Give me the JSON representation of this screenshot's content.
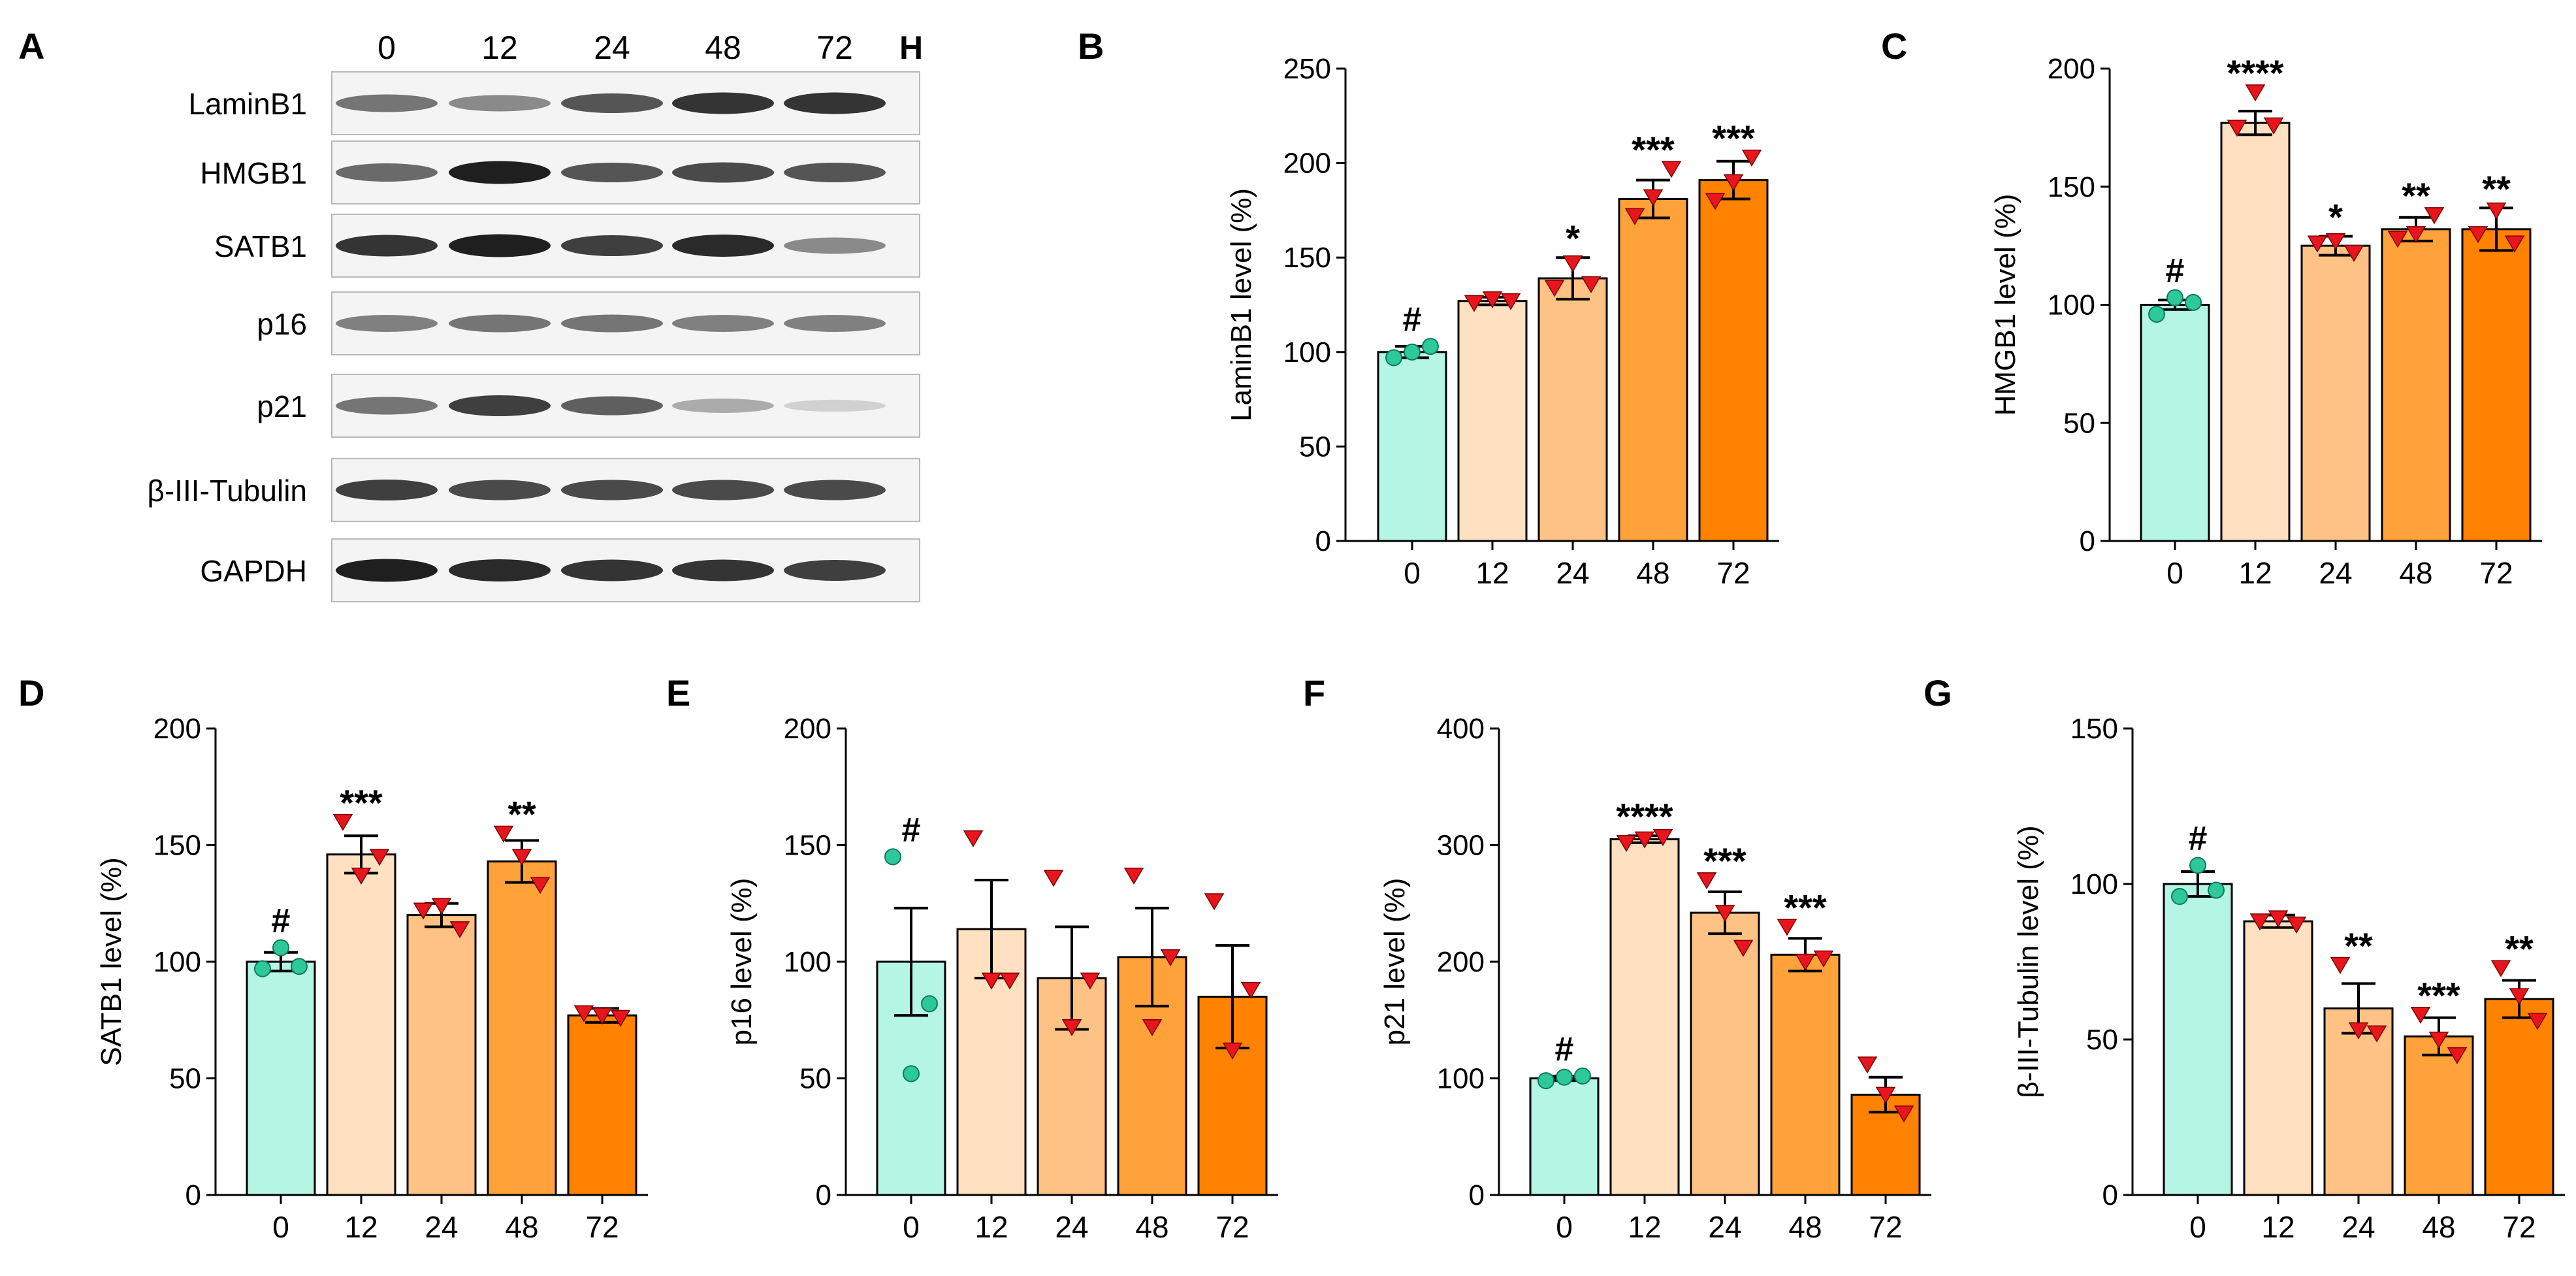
{
  "panel_a": {
    "letter": "A",
    "lane_labels": [
      "0",
      "12",
      "24",
      "48",
      "72"
    ],
    "unit": "H",
    "rows": [
      "LaminB1",
      "HMGB1",
      "SATB1",
      "p16",
      "p21",
      "β-III-Tubulin",
      "GAPDH"
    ],
    "band_intensity": [
      [
        0.55,
        0.45,
        0.7,
        0.85,
        0.85
      ],
      [
        0.6,
        0.95,
        0.7,
        0.75,
        0.7
      ],
      [
        0.85,
        0.95,
        0.8,
        0.9,
        0.45
      ],
      [
        0.5,
        0.55,
        0.55,
        0.5,
        0.5
      ],
      [
        0.55,
        0.8,
        0.65,
        0.3,
        0.12
      ],
      [
        0.8,
        0.75,
        0.75,
        0.75,
        0.75
      ],
      [
        0.95,
        0.9,
        0.85,
        0.85,
        0.8
      ]
    ]
  },
  "bar_colors": [
    "#b4f5e4",
    "#ffe0c0",
    "#ffc285",
    "#ffa23a",
    "#ff8200"
  ],
  "point_colors": {
    "control": "#2ec99a",
    "treated": "#e8161c"
  },
  "chart_data": [
    {
      "panel": "B",
      "type": "bar",
      "categories": [
        "0",
        "12",
        "24",
        "48",
        "72"
      ],
      "values": [
        100,
        127,
        139,
        181,
        191
      ],
      "errors": [
        3,
        2,
        11,
        10,
        10
      ],
      "points": [
        [
          97,
          100,
          103
        ],
        [
          126,
          128,
          127
        ],
        [
          134,
          147,
          136
        ],
        [
          172,
          182,
          197
        ],
        [
          180,
          190,
          203
        ]
      ],
      "significance": [
        "#",
        "",
        "*",
        "***",
        "***"
      ],
      "ylabel": "LaminB1 level (%)",
      "ylim": [
        0,
        250
      ],
      "yticks": [
        "0",
        "50",
        "100",
        "150",
        "200",
        "250"
      ]
    },
    {
      "panel": "C",
      "type": "bar",
      "categories": [
        "0",
        "12",
        "24",
        "48",
        "72"
      ],
      "values": [
        100,
        177,
        125,
        132,
        132
      ],
      "errors": [
        2,
        5,
        4,
        5,
        9
      ],
      "points": [
        [
          96,
          103,
          101
        ],
        [
          175,
          190,
          176
        ],
        [
          126,
          127,
          122
        ],
        [
          128,
          130,
          138
        ],
        [
          130,
          140,
          126
        ]
      ],
      "significance": [
        "#",
        "****",
        "*",
        "**",
        "**"
      ],
      "ylabel": "HMGB1 level (%)",
      "ylim": [
        0,
        200
      ],
      "yticks": [
        "0",
        "50",
        "100",
        "150",
        "200"
      ]
    },
    {
      "panel": "D",
      "type": "bar",
      "categories": [
        "0",
        "12",
        "24",
        "48",
        "72"
      ],
      "values": [
        100,
        146,
        120,
        143,
        77
      ],
      "errors": [
        4,
        8,
        5,
        9,
        3
      ],
      "points": [
        [
          97,
          106,
          98
        ],
        [
          160,
          137,
          145
        ],
        [
          122,
          124,
          114
        ],
        [
          155,
          145,
          133
        ],
        [
          78,
          77,
          76
        ]
      ],
      "significance": [
        "#",
        "***",
        "",
        "**",
        ""
      ],
      "ylabel": "SATB1 level (%)",
      "ylim": [
        0,
        200
      ],
      "yticks": [
        "0",
        "50",
        "100",
        "150",
        "200"
      ]
    },
    {
      "panel": "E",
      "type": "bar",
      "categories": [
        "0",
        "12",
        "24",
        "48",
        "72"
      ],
      "values": [
        100,
        114,
        93,
        102,
        85
      ],
      "errors": [
        23,
        21,
        22,
        21,
        22
      ],
      "points": [
        [
          145,
          52,
          82
        ],
        [
          153,
          92,
          92
        ],
        [
          136,
          72,
          92
        ],
        [
          137,
          72,
          102
        ],
        [
          126,
          62,
          88
        ]
      ],
      "significance": [
        "#",
        "",
        "",
        "",
        ""
      ],
      "ylabel": "p16 level (%)",
      "ylim": [
        0,
        200
      ],
      "yticks": [
        "0",
        "50",
        "100",
        "150",
        "200"
      ]
    },
    {
      "panel": "F",
      "type": "bar",
      "categories": [
        "0",
        "12",
        "24",
        "48",
        "72"
      ],
      "values": [
        100,
        305,
        242,
        206,
        86
      ],
      "errors": [
        2,
        3,
        18,
        14,
        15
      ],
      "points": [
        [
          98,
          101,
          102
        ],
        [
          302,
          305,
          307
        ],
        [
          270,
          242,
          212
        ],
        [
          230,
          200,
          203
        ],
        [
          112,
          86,
          70
        ]
      ],
      "significance": [
        "#",
        "****",
        "***",
        "***",
        ""
      ],
      "ylabel": "p21 level (%)",
      "ylim": [
        0,
        400
      ],
      "yticks": [
        "0",
        "100",
        "200",
        "300",
        "400"
      ]
    },
    {
      "panel": "G",
      "type": "bar",
      "categories": [
        "0",
        "12",
        "24",
        "48",
        "72"
      ],
      "values": [
        100,
        88,
        60,
        51,
        63
      ],
      "errors": [
        4,
        2,
        8,
        6,
        6
      ],
      "points": [
        [
          96,
          106,
          98
        ],
        [
          88,
          89,
          87
        ],
        [
          74,
          53,
          52
        ],
        [
          58,
          50,
          45
        ],
        [
          73,
          64,
          56
        ]
      ],
      "significance": [
        "#",
        "",
        "**",
        "***",
        "**"
      ],
      "ylabel": "β-III-Tubulin level (%)",
      "ylim": [
        0,
        150
      ],
      "yticks": [
        "0",
        "50",
        "100",
        "150"
      ]
    }
  ]
}
